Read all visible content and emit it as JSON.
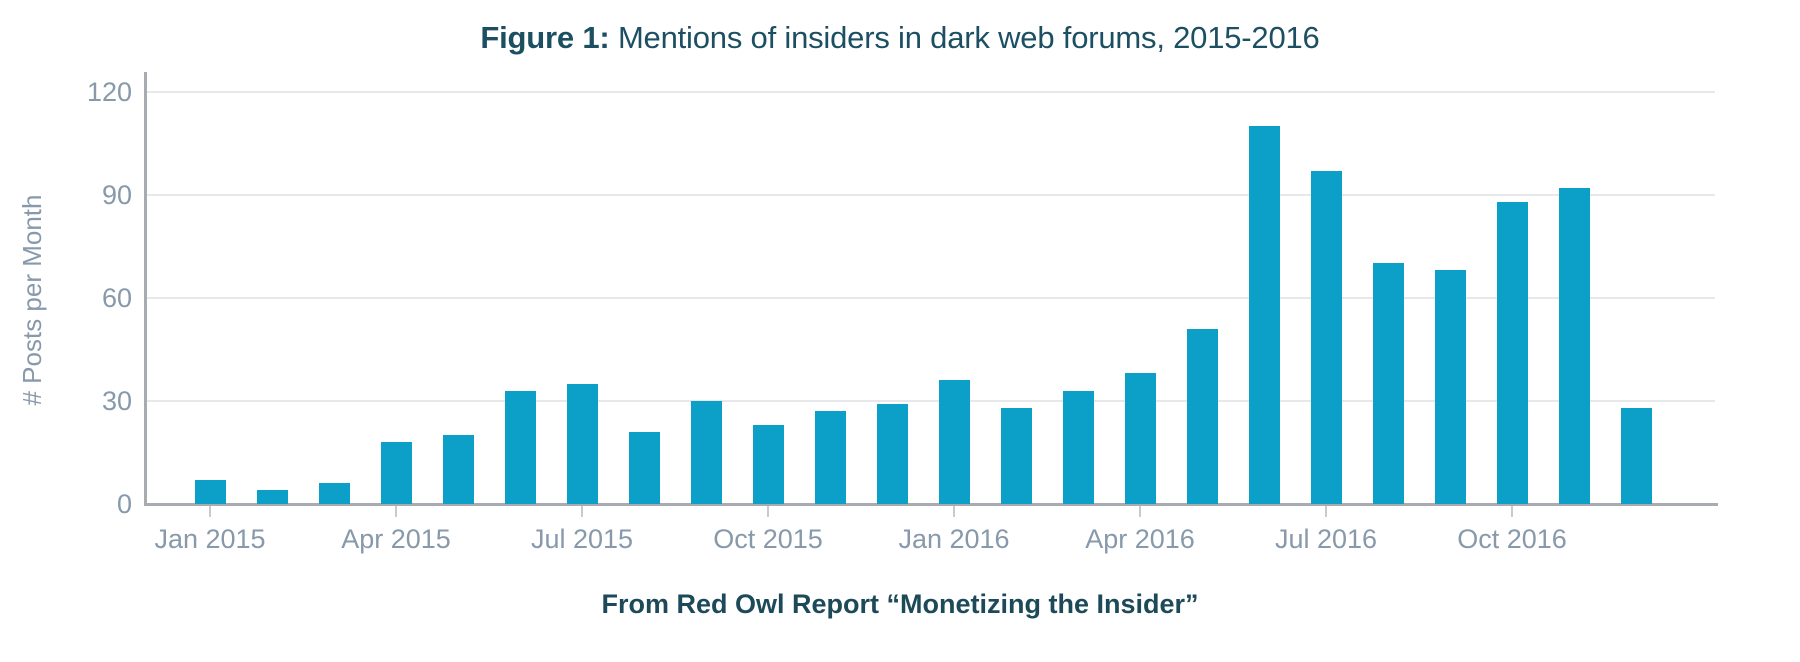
{
  "title": {
    "prefix": "Figure 1:",
    "text": "Mentions of insiders in dark web forums, 2015-2016"
  },
  "caption": "From Red Owl Report “Monetizing the Insider”",
  "colors": {
    "bar": "#0ca0c8",
    "title_text": "#1d4f63",
    "caption_text": "#1d4a59",
    "axis_text": "#8799aa",
    "gridline": "#e6e8ea",
    "axis_line": "#a8acb0"
  },
  "chart_data": {
    "type": "bar",
    "title": "Figure 1: Mentions of insiders in dark web forums, 2015-2016",
    "xlabel": "",
    "ylabel": "# Posts per Month",
    "ylim": [
      0,
      120
    ],
    "y_ticks": [
      0,
      30,
      60,
      90,
      120
    ],
    "grid": true,
    "legend": "none",
    "source_note": "From Red Owl Report “Monetizing the Insider”",
    "categories": [
      "Jan 2015",
      "Feb 2015",
      "Mar 2015",
      "Apr 2015",
      "May 2015",
      "Jun 2015",
      "Jul 2015",
      "Aug 2015",
      "Sep 2015",
      "Oct 2015",
      "Nov 2015",
      "Dec 2015",
      "Jan 2016",
      "Feb 2016",
      "Mar 2016",
      "Apr 2016",
      "May 2016",
      "Jun 2016",
      "Jul 2016",
      "Aug 2016",
      "Sep 2016",
      "Oct 2016",
      "Nov 2016",
      "Dec 2016"
    ],
    "values": [
      7,
      4,
      6,
      18,
      20,
      33,
      35,
      21,
      30,
      23,
      27,
      29,
      36,
      28,
      33,
      38,
      51,
      110,
      97,
      70,
      68,
      88,
      92,
      28
    ],
    "x_tick_labels": [
      "Jan 2015",
      "Apr 2015",
      "Jul 2015",
      "Oct 2015",
      "Jan 2016",
      "Apr 2016",
      "Jul 2016",
      "Oct 2016"
    ],
    "x_tick_every": 3
  }
}
